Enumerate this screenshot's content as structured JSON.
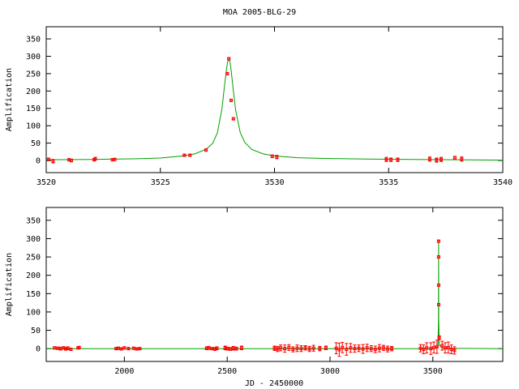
{
  "title": "MOA 2005-BLG-29",
  "colors": {
    "model": "#00a000",
    "data": "#ff0000",
    "frame": "#000000"
  },
  "chart_data": [
    {
      "type": "line",
      "xlabel": "",
      "ylabel": "Amplification",
      "xlim": [
        3520,
        3540
      ],
      "ylim": [
        -35,
        385
      ],
      "xticks": [
        3520,
        3525,
        3530,
        3535,
        3540
      ],
      "xtick_labels": [
        "3520",
        "3525",
        "3530",
        "3535",
        "3540"
      ],
      "yticks": [
        0,
        50,
        100,
        150,
        200,
        250,
        300,
        350
      ],
      "ytick_labels": [
        "0",
        "50",
        "100",
        "150",
        "200",
        "250",
        "300",
        "350"
      ],
      "grid": false,
      "series": [
        {
          "kind": "model-curve",
          "style": "line",
          "x": [
            3520,
            3522,
            3524,
            3525,
            3526,
            3526.5,
            3527,
            3527.3,
            3527.5,
            3527.7,
            3527.8,
            3527.9,
            3527.95,
            3528.0,
            3528.05,
            3528.1,
            3528.2,
            3528.3,
            3528.5,
            3528.7,
            3529,
            3529.5,
            3530,
            3531,
            3532,
            3534,
            3536,
            3538,
            3540
          ],
          "y": [
            2,
            3,
            5,
            7,
            13,
            19,
            32,
            50,
            80,
            150,
            210,
            265,
            285,
            290,
            285,
            260,
            200,
            145,
            80,
            52,
            32,
            19,
            13,
            8,
            6,
            4,
            3,
            2,
            1
          ]
        },
        {
          "kind": "observations",
          "style": "errorbar",
          "x": [
            3520.1,
            3520.3,
            3521.0,
            3521.1,
            3522.1,
            3522.15,
            3522.9,
            3523.0,
            3526.05,
            3526.3,
            3527.0,
            3527.93,
            3528.0,
            3528.1,
            3528.2,
            3529.9,
            3530.1,
            3534.9,
            3535.1,
            3535.4,
            3536.8,
            3537.1,
            3537.3,
            3537.9,
            3538.2
          ],
          "y": [
            3,
            -2,
            2,
            0,
            2,
            5,
            2,
            3,
            15,
            15,
            30,
            250,
            293,
            173,
            120,
            12,
            10,
            3,
            2,
            2,
            4,
            1,
            3,
            8,
            4
          ],
          "yerr": [
            4,
            5,
            3,
            4,
            3,
            4,
            3,
            3,
            3,
            3,
            3,
            3,
            3,
            3,
            3,
            4,
            5,
            6,
            5,
            5,
            6,
            6,
            6,
            4,
            6
          ]
        }
      ]
    },
    {
      "type": "line",
      "xlabel": "JD - 2450000",
      "ylabel": "Amplification",
      "xlim": [
        1620,
        3840
      ],
      "ylim": [
        -35,
        385
      ],
      "xticks": [
        2000,
        2500,
        3000,
        3500
      ],
      "xtick_labels": [
        "2000",
        "2500",
        "3000",
        "3500"
      ],
      "yticks": [
        0,
        50,
        100,
        150,
        200,
        250,
        300,
        350
      ],
      "ytick_labels": [
        "0",
        "50",
        "100",
        "150",
        "200",
        "250",
        "300",
        "350"
      ],
      "grid": false,
      "series": [
        {
          "kind": "model-curve",
          "style": "line",
          "x": [
            1620,
            3510,
            3525,
            3527.5,
            3528,
            3528.5,
            3531,
            3545,
            3840
          ],
          "y": [
            0,
            0,
            5,
            80,
            295,
            80,
            10,
            1,
            0
          ]
        },
        {
          "kind": "observations",
          "style": "errorbar",
          "x": [
            1660,
            1675,
            1690,
            1705,
            1715,
            1725,
            1740,
            1775,
            1780,
            1960,
            1970,
            1985,
            2000,
            2020,
            2045,
            2060,
            2075,
            2400,
            2410,
            2425,
            2440,
            2450,
            2490,
            2500,
            2515,
            2530,
            2545,
            2570,
            2730,
            2745,
            2760,
            2780,
            2800,
            2820,
            2840,
            2860,
            2880,
            2900,
            2920,
            2950,
            2980,
            3030,
            3045,
            3060,
            3080,
            3100,
            3120,
            3140,
            3160,
            3180,
            3200,
            3220,
            3240,
            3260,
            3280,
            3300,
            3440,
            3455,
            3470,
            3490,
            3505,
            3520,
            3527.9,
            3528,
            3528.2,
            3528.4,
            3531,
            3545,
            3560,
            3575,
            3590,
            3605
          ],
          "y": [
            2,
            1,
            0,
            2,
            -1,
            1,
            -2,
            2,
            3,
            0,
            1,
            -1,
            2,
            0,
            1,
            -1,
            0,
            1,
            2,
            0,
            -1,
            1,
            2,
            0,
            -1,
            1,
            0,
            2,
            1,
            -1,
            2,
            0,
            3,
            -2,
            1,
            0,
            2,
            -1,
            1,
            0,
            2,
            1,
            -3,
            3,
            -2,
            2,
            0,
            1,
            -1,
            2,
            0,
            -2,
            1,
            2,
            -1,
            0,
            1,
            -2,
            2,
            0,
            3,
            5,
            250,
            293,
            173,
            120,
            30,
            8,
            2,
            3,
            -2,
            -5
          ],
          "yerr": [
            3,
            3,
            4,
            3,
            3,
            4,
            3,
            3,
            3,
            3,
            3,
            3,
            3,
            3,
            3,
            3,
            3,
            4,
            4,
            3,
            4,
            4,
            5,
            4,
            4,
            5,
            4,
            5,
            6,
            7,
            8,
            10,
            8,
            7,
            9,
            8,
            6,
            7,
            8,
            6,
            5,
            15,
            18,
            14,
            16,
            12,
            10,
            9,
            12,
            10,
            8,
            9,
            10,
            7,
            8,
            6,
            10,
            12,
            14,
            16,
            15,
            18,
            3,
            3,
            3,
            3,
            5,
            12,
            14,
            15,
            12,
            10
          ]
        }
      ]
    }
  ]
}
